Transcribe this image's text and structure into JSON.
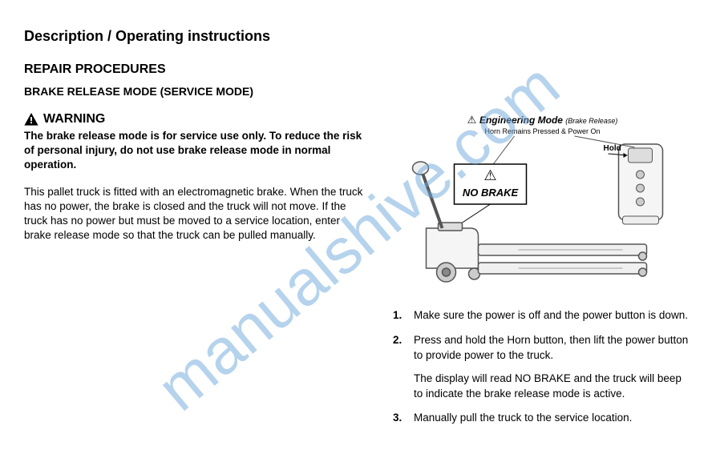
{
  "watermark": "manualshive.com",
  "section_title": "Description / Operating instructions",
  "heading1": "REPAIR PROCEDURES",
  "heading2": "BRAKE RELEASE MODE (SERVICE MODE)",
  "warning": {
    "label": "WARNING",
    "text": "The brake release mode is for service use only. To reduce the risk of personal injury, do not use brake release mode in normal operation."
  },
  "paragraph": "This pallet truck is fitted with an electromagnetic brake. When the truck has no power, the brake is closed and the truck will not move. If the truck has no power but must be moved to a service location, enter brake release mode so that the truck can be pulled manually.",
  "diagram": {
    "title": "Engineering Mode",
    "subtitle": "(Brake Release)",
    "caption": "Horn Remains Pressed & Power On",
    "callout_hold": "Hold",
    "callout_nobrake": "NO BRAKE",
    "warning_symbol": "⚠"
  },
  "steps": [
    {
      "num": "1.",
      "paras": [
        "Make sure the power is off and the power button is down."
      ]
    },
    {
      "num": "2.",
      "paras": [
        "Press and hold the Horn button, then lift the power button to provide power to the truck.",
        "The display will read NO BRAKE and the truck will beep to indicate the brake release mode is active."
      ]
    },
    {
      "num": "3.",
      "paras": [
        "Manually pull the truck to the service location."
      ]
    }
  ],
  "colors": {
    "text": "#000000",
    "watermark": "#6fa8dc",
    "diagram_line": "#555555",
    "diagram_fill": "#f0f0f0"
  }
}
